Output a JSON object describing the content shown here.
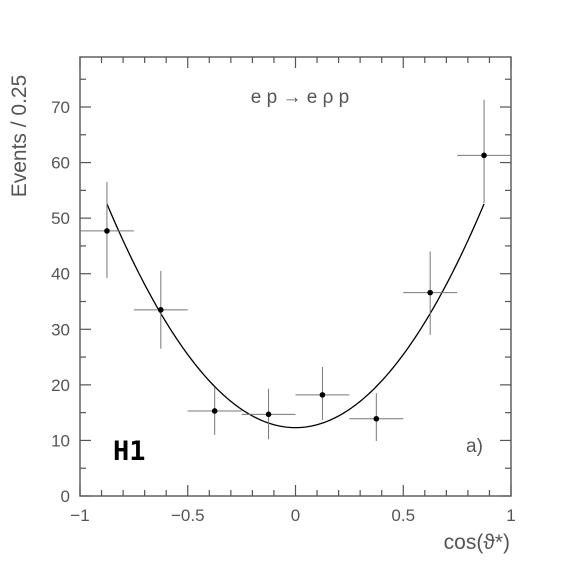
{
  "chart_data": {
    "type": "scatter",
    "ylabel": "Events / 0.25",
    "xlabel": "cos(ϑ*)",
    "xlim": [
      -1,
      1
    ],
    "ylim": [
      0,
      79
    ],
    "x_ticks": [
      -1,
      -0.5,
      0,
      0.5,
      1
    ],
    "x_tick_labels": [
      "−1",
      "−0.5",
      "0",
      "0.5",
      "1"
    ],
    "y_ticks": [
      0,
      10,
      20,
      30,
      40,
      50,
      60,
      70
    ],
    "y_tick_labels": [
      "0",
      "10",
      "20",
      "30",
      "40",
      "50",
      "60",
      "70"
    ],
    "grid": false,
    "points": [
      {
        "x": -0.875,
        "y": 47.7,
        "xerr": 0.125,
        "yerr_low": 8.5,
        "yerr_high": 8.8
      },
      {
        "x": -0.625,
        "y": 33.5,
        "xerr": 0.125,
        "yerr_low": 7.0,
        "yerr_high": 7.0
      },
      {
        "x": -0.375,
        "y": 15.3,
        "xerr": 0.125,
        "yerr_low": 4.3,
        "yerr_high": 4.2
      },
      {
        "x": -0.125,
        "y": 14.7,
        "xerr": 0.125,
        "yerr_low": 4.5,
        "yerr_high": 4.6
      },
      {
        "x": 0.125,
        "y": 18.2,
        "xerr": 0.125,
        "yerr_low": 4.5,
        "yerr_high": 5.0
      },
      {
        "x": 0.375,
        "y": 13.9,
        "xerr": 0.125,
        "yerr_low": 4.0,
        "yerr_high": 4.6
      },
      {
        "x": 0.625,
        "y": 36.6,
        "xerr": 0.125,
        "yerr_low": 7.6,
        "yerr_high": 7.4
      },
      {
        "x": 0.875,
        "y": 61.3,
        "xerr": 0.125,
        "yerr_low": 8.6,
        "yerr_high": 10.0
      }
    ],
    "fit": {
      "form": "a + b*x^2",
      "a": 12.3,
      "b": 52.6,
      "x_range": [
        -0.875,
        0.875
      ]
    }
  },
  "annotations": {
    "reaction": "e p → e ρ p",
    "logo": "H1",
    "panel_label": "a)"
  }
}
